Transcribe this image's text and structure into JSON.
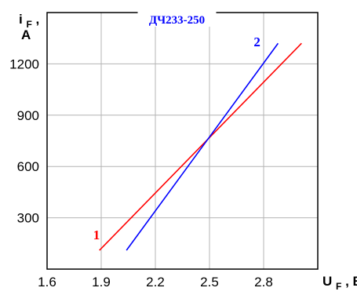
{
  "chart_data": {
    "type": "line",
    "title": "ДЧ233-250",
    "xlabel_main": "U",
    "xlabel_sub": "F",
    "xlabel_unit": ", В",
    "ylabel_main": "i",
    "ylabel_sub": "F",
    "ylabel_suffix": ",",
    "ylabel_unit": "A",
    "xlim": [
      1.6,
      3.1
    ],
    "ylim": [
      0,
      1500
    ],
    "x_ticks": [
      "1.6",
      "1.9",
      "2.2",
      "2.5",
      "2.8"
    ],
    "y_ticks": [
      "300",
      "600",
      "900",
      "1200"
    ],
    "grid": true,
    "series": [
      {
        "name": "1",
        "color": "#ff0000",
        "x": [
          1.89,
          3.01
        ],
        "y": [
          110,
          1320
        ]
      },
      {
        "name": "2",
        "color": "#0000ff",
        "x": [
          2.04,
          2.88
        ],
        "y": [
          110,
          1320
        ]
      }
    ]
  }
}
